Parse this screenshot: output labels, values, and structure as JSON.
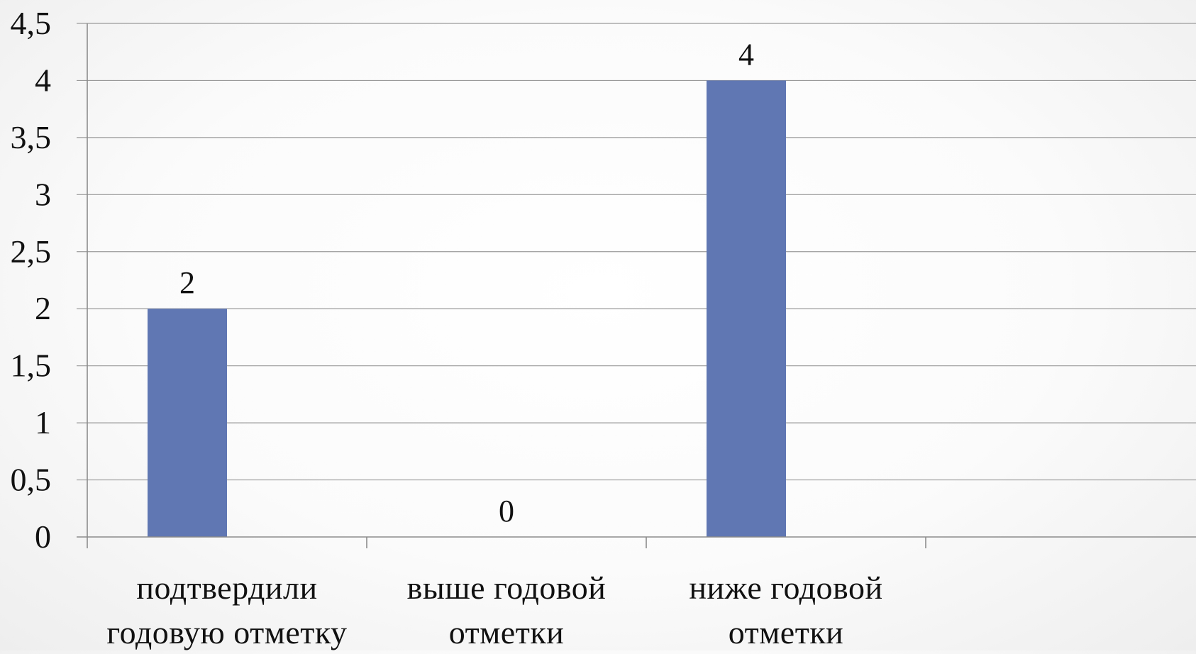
{
  "chart_data": {
    "type": "bar",
    "categories": [
      [
        "подтвердили",
        "годовую отметку"
      ],
      [
        "выше годовой",
        "отметки"
      ],
      [
        "ниже годовой",
        "отметки"
      ],
      [
        "",
        ""
      ]
    ],
    "values": [
      2,
      0,
      4,
      null
    ],
    "data_labels": [
      "2",
      "0",
      "4",
      ""
    ],
    "ylim": [
      0,
      4.5
    ],
    "yticks": [
      "0",
      "0,5",
      "1",
      "1,5",
      "2",
      "2,5",
      "3",
      "3,5",
      "4",
      "4,5"
    ],
    "title": "",
    "xlabel": "",
    "ylabel": "",
    "grid": true,
    "legend": "none",
    "colors": {
      "bar": "#6077B3",
      "grid": "#9a9a9a",
      "axis": "#8c8c8c",
      "text": "#111111"
    }
  }
}
